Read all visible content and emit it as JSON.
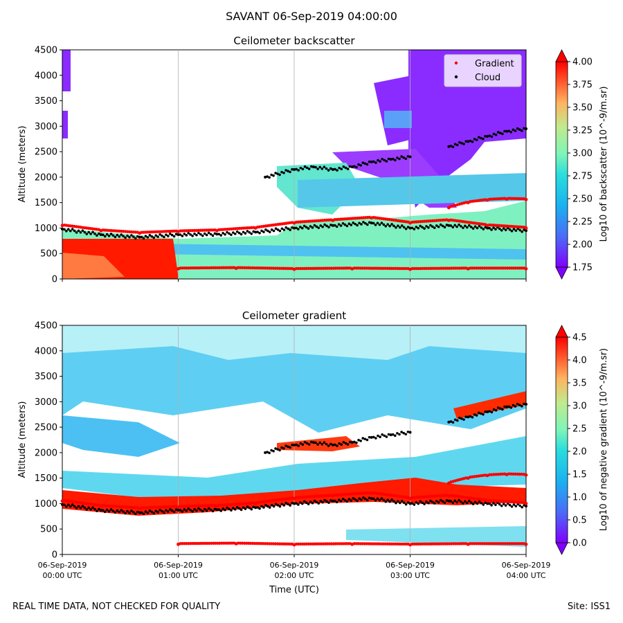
{
  "figure": {
    "title": "SAVANT 06-Sep-2019 04:00:00",
    "footer_left": "REAL TIME DATA, NOT CHECKED FOR QUALITY",
    "footer_right": "Site: ISS1"
  },
  "chart_data": [
    {
      "type": "heatmap",
      "title": "Ceilometer backscatter",
      "ylabel": "Altitude (meters)",
      "xlabel": "",
      "ylim": [
        0,
        4500
      ],
      "xlim": [
        "00:00",
        "04:00"
      ],
      "yticks": [
        "0",
        "500",
        "1000",
        "1500",
        "2000",
        "2500",
        "3000",
        "3500",
        "4000",
        "4500"
      ],
      "xticks": [],
      "grid": "vertical",
      "legend": {
        "location": "upper-right",
        "entries": [
          {
            "label": "Gradient",
            "color": "#ff0000"
          },
          {
            "label": "Cloud",
            "color": "#000000"
          }
        ]
      },
      "colorbar": {
        "label": "Log10 of backscatter (10^-9/m.sr)",
        "range": [
          1.75,
          4.0
        ],
        "ticks": [
          "1.75",
          "2.00",
          "2.25",
          "2.50",
          "2.75",
          "3.00",
          "3.25",
          "3.50",
          "3.75",
          "4.00"
        ],
        "colormap": "rainbow"
      },
      "layers": {
        "near_surface_aerosol": {
          "start": "00:00",
          "end": "01:00",
          "top": 600,
          "level": 4.0
        },
        "boundary_layer_band": {
          "level": 2.6
        },
        "upper_patches": {
          "level": 1.8
        }
      },
      "series": [
        {
          "name": "Cloud",
          "color": "#000000",
          "x": [
            "00:00",
            "00:20",
            "00:40",
            "01:00",
            "01:20",
            "01:40",
            "02:00",
            "02:20",
            "02:40",
            "03:00",
            "03:20",
            "03:40",
            "04:00"
          ],
          "y": [
            980,
            870,
            820,
            870,
            880,
            920,
            1000,
            1050,
            1100,
            1000,
            1050,
            1000,
            950
          ]
        },
        {
          "name": "Cloud",
          "color": "#000000",
          "x": [
            "01:45",
            "02:00",
            "02:10",
            "02:20",
            "02:30",
            "02:40",
            "02:50",
            "03:00"
          ],
          "y": [
            2000,
            2150,
            2200,
            2150,
            2200,
            2300,
            2350,
            2400
          ]
        },
        {
          "name": "Cloud",
          "color": "#000000",
          "x": [
            "03:20",
            "03:30",
            "03:40",
            "03:50",
            "04:00"
          ],
          "y": [
            2600,
            2700,
            2800,
            2900,
            2950
          ]
        },
        {
          "name": "Gradient",
          "color": "#ff0000",
          "x": [
            "00:00",
            "00:20",
            "00:40",
            "01:00",
            "01:20",
            "01:40",
            "02:00",
            "02:20",
            "02:40",
            "03:00",
            "03:20",
            "03:40",
            "04:00"
          ],
          "y": [
            1050,
            950,
            900,
            930,
            950,
            1000,
            1100,
            1150,
            1200,
            1100,
            1150,
            1050,
            1000
          ]
        },
        {
          "name": "Gradient",
          "color": "#ff0000",
          "x": [
            "01:00",
            "01:30",
            "02:00",
            "02:30",
            "03:00",
            "03:30",
            "04:00"
          ],
          "y": [
            200,
            210,
            190,
            200,
            190,
            200,
            200
          ]
        },
        {
          "name": "Gradient",
          "color": "#ff0000",
          "x": [
            "03:20",
            "03:30",
            "03:40",
            "03:50",
            "04:00"
          ],
          "y": [
            1400,
            1500,
            1550,
            1570,
            1560
          ]
        }
      ]
    },
    {
      "type": "heatmap",
      "title": "Ceilometer gradient",
      "ylabel": "Altitude (meters)",
      "xlabel": "Time (UTC)",
      "ylim": [
        0,
        4500
      ],
      "xlim": [
        "00:00",
        "04:00"
      ],
      "yticks": [
        "0",
        "500",
        "1000",
        "1500",
        "2000",
        "2500",
        "3000",
        "3500",
        "4000",
        "4500"
      ],
      "xticks": [
        {
          "date": "06-Sep-2019",
          "time": "00:00 UTC"
        },
        {
          "date": "06-Sep-2019",
          "time": "01:00 UTC"
        },
        {
          "date": "06-Sep-2019",
          "time": "02:00 UTC"
        },
        {
          "date": "06-Sep-2019",
          "time": "03:00 UTC"
        },
        {
          "date": "06-Sep-2019",
          "time": "04:00 UTC"
        }
      ],
      "grid": "vertical",
      "colorbar": {
        "label": "Log10 of negative gradient (10^-9/m.sr)",
        "range": [
          0.0,
          4.5
        ],
        "ticks": [
          "0.0",
          "0.5",
          "1.0",
          "1.5",
          "2.0",
          "2.5",
          "3.0",
          "3.5",
          "4.0",
          "4.5"
        ],
        "colormap": "rainbow"
      },
      "layers": {
        "upper_haze": {
          "level": 1.3
        },
        "boundary_layer_band": {
          "level": 4.5
        }
      },
      "series": [
        {
          "name": "Cloud",
          "color": "#000000",
          "x": [
            "00:00",
            "00:20",
            "00:40",
            "01:00",
            "01:20",
            "01:40",
            "02:00",
            "02:20",
            "02:40",
            "03:00",
            "03:20",
            "03:40",
            "04:00"
          ],
          "y": [
            980,
            870,
            820,
            870,
            880,
            920,
            1000,
            1050,
            1100,
            1000,
            1050,
            1000,
            950
          ]
        },
        {
          "name": "Cloud",
          "color": "#000000",
          "x": [
            "01:45",
            "02:00",
            "02:10",
            "02:20",
            "02:30",
            "02:40",
            "02:50",
            "03:00"
          ],
          "y": [
            2000,
            2150,
            2200,
            2150,
            2200,
            2300,
            2350,
            2400
          ]
        },
        {
          "name": "Cloud",
          "color": "#000000",
          "x": [
            "03:20",
            "03:30",
            "03:40",
            "03:50",
            "04:00"
          ],
          "y": [
            2600,
            2700,
            2800,
            2900,
            2950
          ]
        },
        {
          "name": "Gradient",
          "color": "#ff0000",
          "x": [
            "00:00",
            "00:20",
            "00:40",
            "01:00",
            "01:20",
            "01:40",
            "02:00",
            "02:20",
            "02:40",
            "03:00",
            "03:20",
            "03:40",
            "04:00"
          ],
          "y": [
            1050,
            950,
            900,
            930,
            950,
            1000,
            1100,
            1150,
            1200,
            1100,
            1150,
            1050,
            1000
          ]
        },
        {
          "name": "Gradient",
          "color": "#ff0000",
          "x": [
            "01:00",
            "01:30",
            "02:00",
            "02:30",
            "03:00",
            "03:30",
            "04:00"
          ],
          "y": [
            200,
            210,
            190,
            200,
            190,
            200,
            200
          ]
        },
        {
          "name": "Gradient",
          "color": "#ff0000",
          "x": [
            "03:20",
            "03:30",
            "03:40",
            "03:50",
            "04:00"
          ],
          "y": [
            1400,
            1500,
            1550,
            1570,
            1560
          ]
        }
      ]
    }
  ]
}
